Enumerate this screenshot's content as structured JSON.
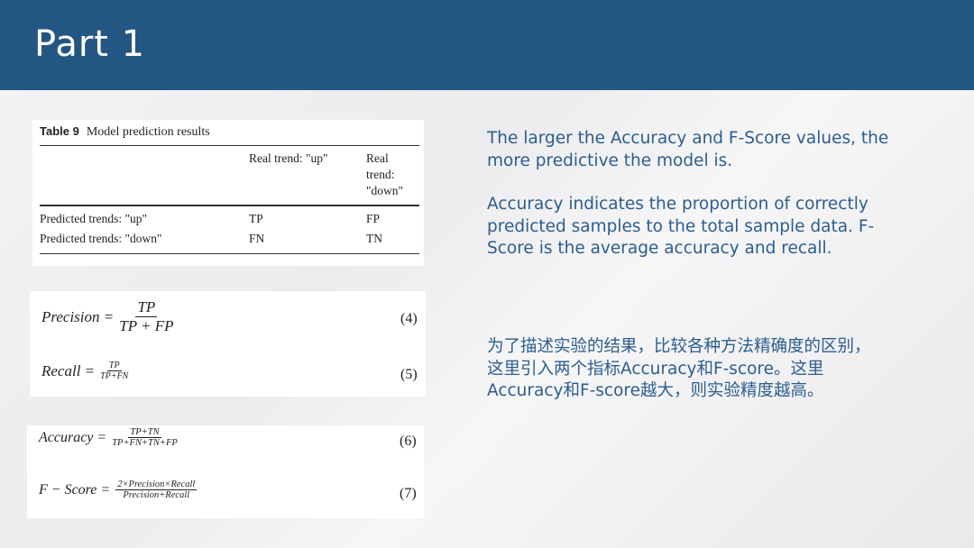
{
  "slide": {
    "title": "Part 1"
  },
  "table": {
    "caption_label": "Table 9",
    "caption_text": "Model prediction results",
    "headers": [
      "",
      "Real trend: \"up\"",
      "Real\ntrend:\n\"down\""
    ],
    "rows": [
      [
        "Predicted trends: \"up\"",
        "TP",
        "FP"
      ],
      [
        "Predicted trends: \"down\"",
        "FN",
        "TN"
      ]
    ]
  },
  "formulas": [
    {
      "lhs": "Precision =",
      "num": "TP",
      "den": "TP + FP",
      "label": "(4)"
    },
    {
      "lhs": "Recall =",
      "num": "TP",
      "den": "TP+FN",
      "label": "(5)"
    },
    {
      "lhs": "Accuracy =",
      "num": "TP+TN",
      "den": "TP+FN+TN+FP",
      "label": "(6)"
    },
    {
      "lhs": "F − Score =",
      "num": "2×Precision×Recall",
      "den": "Precision+Recall",
      "label": "(7)"
    }
  ],
  "text": {
    "p1": "The larger the Accuracy and F-Score values, the more predictive the model is.",
    "p2": "Accuracy indicates the proportion of correctly predicted samples to the total sample data. F-Score is the average accuracy and recall.",
    "p3": "为了描述实验的结果，比较各种方法精确度的区别，这里引入两个指标Accuracy和F-score。这里Accuracy和F-score越大，则实验精度越高。"
  },
  "colors": {
    "header": "#245683",
    "body_text": "#2c5d8e"
  }
}
